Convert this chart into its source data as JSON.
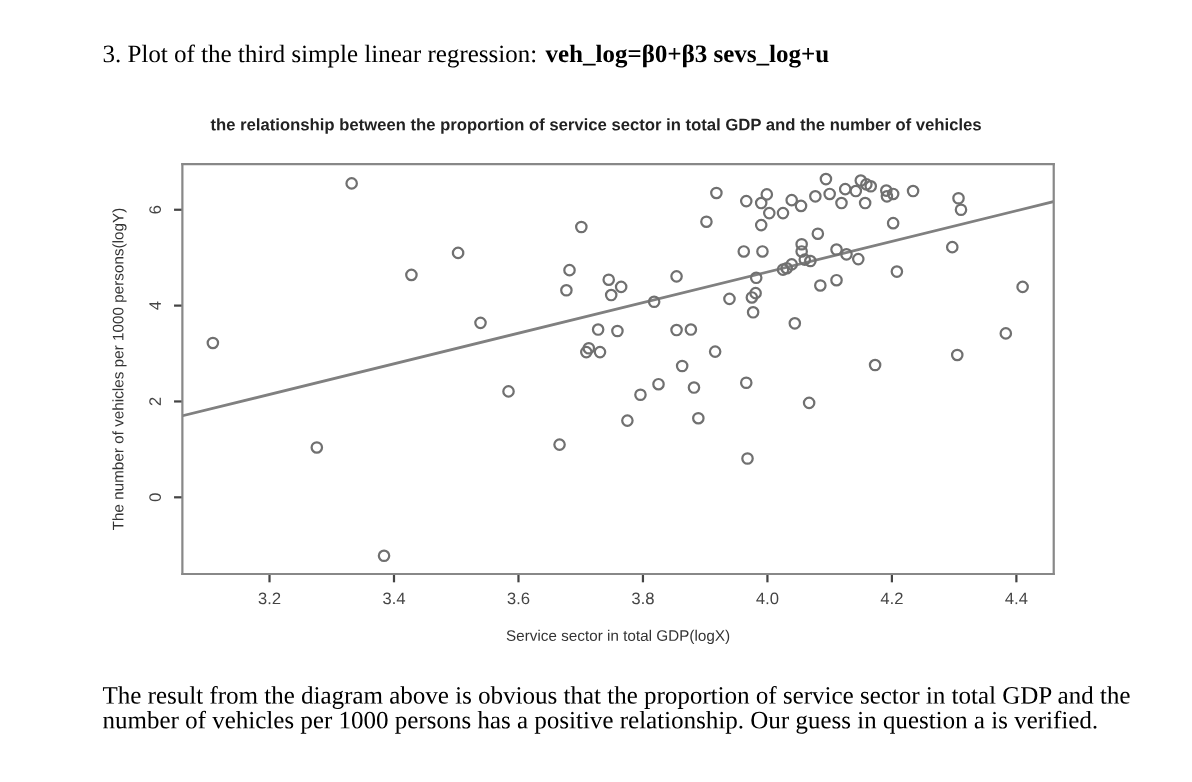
{
  "chart_data": {
    "type": "scatter",
    "title": "the relationship between the proportion of service sector in total GDP and the number of vehicles",
    "xlabel": "Service sector in total GDP(logX)",
    "ylabel": "The number of vehicles per 1000 persons(logY)",
    "annotations": [
      "3. Plot of the third simple linear regression:",
      "veh_log=β0+β3 sevs_log+u",
      "The result from the diagram above is obvious that the proportion of service sector in total GDP and the number of vehicles per 1000 persons has a positive relationship. Our guess in question a is verified."
    ],
    "xlim": [
      3.06,
      4.46
    ],
    "ylim": [
      -1.6,
      6.95
    ],
    "xticks": [
      3.2,
      3.4,
      3.6,
      3.8,
      {
        "value": 4.0,
        "label": "4.0"
      },
      4.2,
      4.4
    ],
    "yticks": [
      0,
      2,
      4,
      6
    ],
    "grid": false,
    "legend": false,
    "marker": "circle",
    "series": [
      {
        "color": "#707070",
        "x": [
          3.109,
          3.332,
          3.276,
          3.384,
          3.428,
          3.503,
          3.539,
          3.584,
          3.666,
          3.677,
          3.682,
          3.701,
          3.709,
          3.713,
          3.728,
          3.731,
          3.745,
          3.749,
          3.759,
          3.765,
          3.775,
          3.818,
          3.854,
          3.854,
          3.877,
          3.863,
          3.825,
          3.796,
          3.882,
          3.889,
          3.916,
          3.902,
          3.918,
          3.939,
          3.962,
          3.966,
          3.966,
          3.968,
          3.977,
          3.975,
          3.981,
          3.982,
          3.99,
          3.99,
          3.992,
          3.999,
          4.003,
          4.025,
          4.025,
          4.031,
          4.039,
          4.039,
          4.044,
          4.054,
          4.055,
          4.055,
          4.06,
          4.069,
          4.067,
          4.077,
          4.081,
          4.085,
          4.094,
          4.1,
          4.111,
          4.111,
          4.119,
          4.125,
          4.127,
          4.142,
          4.146,
          4.15,
          4.157,
          4.159,
          4.166,
          4.173,
          4.191,
          4.192,
          4.202,
          4.202,
          4.208,
          4.234,
          4.297,
          4.307,
          4.311,
          4.305,
          4.383,
          4.41
        ],
        "values": [
          3.22,
          6.55,
          1.04,
          -1.22,
          4.64,
          5.1,
          3.64,
          2.21,
          1.1,
          4.32,
          4.74,
          5.64,
          3.03,
          3.11,
          3.5,
          3.03,
          4.54,
          4.22,
          3.47,
          4.39,
          1.6,
          4.08,
          4.61,
          3.49,
          3.5,
          2.74,
          2.36,
          2.14,
          2.29,
          1.65,
          3.04,
          5.75,
          6.35,
          4.14,
          5.13,
          6.18,
          2.39,
          0.81,
          3.86,
          4.17,
          4.26,
          4.58,
          5.68,
          6.14,
          5.13,
          6.32,
          5.93,
          5.93,
          4.75,
          4.78,
          6.2,
          4.86,
          3.63,
          6.08,
          5.28,
          5.13,
          4.96,
          4.93,
          1.97,
          6.28,
          5.5,
          4.42,
          6.64,
          6.33,
          5.17,
          4.53,
          6.14,
          6.43,
          5.07,
          6.39,
          4.97,
          6.61,
          6.14,
          6.53,
          6.49,
          2.76,
          6.4,
          6.28,
          6.33,
          5.72,
          4.71,
          6.39,
          5.22,
          6.24,
          6.0,
          2.97,
          3.42,
          4.39
        ]
      },
      {
        "type": "line",
        "color": "#808080",
        "marker": "none",
        "line_style": "solid",
        "x": [
          3.06,
          4.46
        ],
        "values": [
          1.7,
          6.17
        ]
      }
    ]
  }
}
